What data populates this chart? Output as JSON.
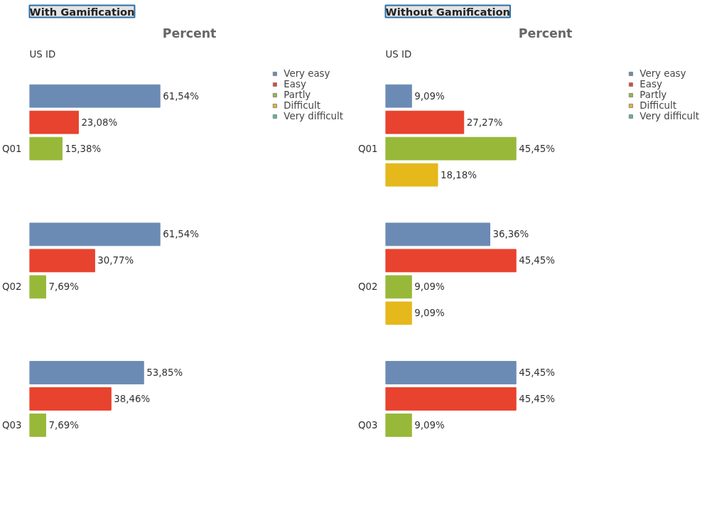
{
  "chart_data": [
    {
      "type": "bar",
      "orientation": "horizontal",
      "title": "With Gamification",
      "subtitle": "Percent",
      "ylabel": "US ID",
      "legend": "top right",
      "categories": [
        "Q01",
        "Q02",
        "Q03"
      ],
      "series": [
        {
          "name": "Very easy",
          "color": "#6b8bb5",
          "values": [
            61.54,
            61.54,
            53.85
          ],
          "value_labels": [
            "61,54%",
            "61,54%",
            "53,85%"
          ]
        },
        {
          "name": "Easy",
          "color": "#e8432f",
          "values": [
            23.08,
            30.77,
            38.46
          ],
          "value_labels": [
            "23,08%",
            "30,77%",
            "38,46%"
          ]
        },
        {
          "name": "Partly",
          "color": "#98b83a",
          "values": [
            15.38,
            7.69,
            7.69
          ],
          "value_labels": [
            "15,38%",
            "7,69%",
            "7,69%"
          ]
        },
        {
          "name": "Difficult",
          "color": "#e5b81c",
          "values": [
            null,
            null,
            null
          ],
          "value_labels": [
            null,
            null,
            null
          ]
        },
        {
          "name": "Very difficult",
          "color": "#5cb88e",
          "values": [
            null,
            null,
            null
          ],
          "value_labels": [
            null,
            null,
            null
          ]
        }
      ]
    },
    {
      "type": "bar",
      "orientation": "horizontal",
      "title": "Without Gamification",
      "subtitle": "Percent",
      "ylabel": "US ID",
      "legend": "top right",
      "categories": [
        "Q01",
        "Q02",
        "Q03"
      ],
      "series": [
        {
          "name": "Very easy",
          "color": "#6b8bb5",
          "values": [
            9.09,
            36.36,
            45.45
          ],
          "value_labels": [
            "9,09%",
            "36,36%",
            "45,45%"
          ]
        },
        {
          "name": "Easy",
          "color": "#e8432f",
          "values": [
            27.27,
            45.45,
            45.45
          ],
          "value_labels": [
            "27,27%",
            "45,45%",
            "45,45%"
          ]
        },
        {
          "name": "Partly",
          "color": "#98b83a",
          "values": [
            45.45,
            9.09,
            9.09
          ],
          "value_labels": [
            "45,45%",
            "9,09%",
            "9,09%"
          ]
        },
        {
          "name": "Difficult",
          "color": "#e5b81c",
          "values": [
            18.18,
            9.09,
            null
          ],
          "value_labels": [
            "18,18%",
            "9,09%",
            null
          ]
        },
        {
          "name": "Very difficult",
          "color": "#5cb88e",
          "values": [
            null,
            null,
            null
          ],
          "value_labels": [
            null,
            null,
            null
          ]
        }
      ]
    }
  ]
}
